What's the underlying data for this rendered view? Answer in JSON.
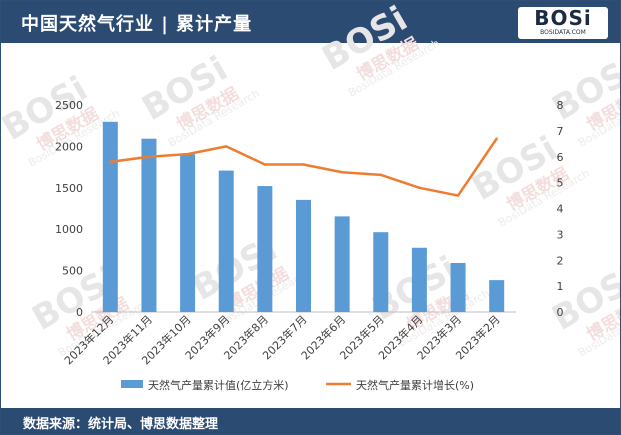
{
  "header": {
    "title": "中国天然气行业 | 累计产量"
  },
  "logo": {
    "text": "BOSi",
    "subtext": "BOSIDATA.COM",
    "watermark_text": "BOSi",
    "watermark_cn": "博思数据",
    "watermark_en": "BosiData Research"
  },
  "footer": {
    "source": "数据来源：统计局、博思数据整理"
  },
  "chart_data": {
    "type": "bar",
    "categories": [
      "2023年12月",
      "2023年11月",
      "2023年10月",
      "2023年9月",
      "2023年8月",
      "2023年7月",
      "2023年6月",
      "2023年5月",
      "2023年4月",
      "2023年3月",
      "2023年2月"
    ],
    "series": [
      {
        "name": "天然气产量累计值(亿立方米)",
        "type": "bar",
        "axis": "left",
        "color": "#5b9bd5",
        "values": [
          2297,
          2093,
          1906,
          1708,
          1521,
          1354,
          1155,
          964,
          776,
          592,
          385
        ]
      },
      {
        "name": "天然气产量累计增长(%)",
        "type": "line",
        "axis": "right",
        "color": "#ed7d31",
        "values": [
          5.8,
          6.0,
          6.1,
          6.4,
          5.7,
          5.7,
          5.4,
          5.3,
          4.8,
          4.5,
          6.7
        ]
      }
    ],
    "y_left": {
      "min": 0,
      "max": 2500,
      "ticks": [
        0,
        500,
        1000,
        1500,
        2000,
        2500
      ]
    },
    "y_right": {
      "min": 0,
      "max": 8,
      "ticks": [
        0,
        1,
        2,
        3,
        4,
        5,
        6,
        7,
        8
      ]
    },
    "grid": false,
    "legend_position": "bottom"
  }
}
